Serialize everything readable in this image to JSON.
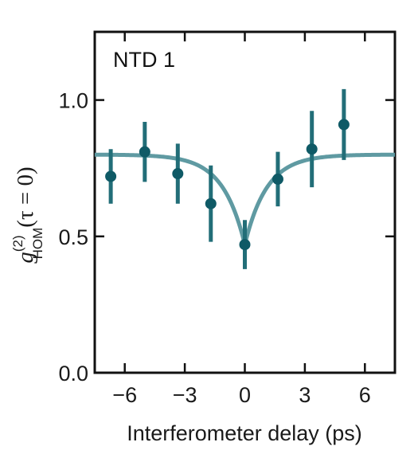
{
  "chart_data": {
    "type": "scatter",
    "panel_label": "NTD 1",
    "xlabel": "Interferometer delay (ps)",
    "ylabel": {
      "base": "g",
      "superscript": "(2)",
      "subscript": "HOM",
      "argument": "(τ = 0)"
    },
    "xlim": [
      -7.5,
      7.5
    ],
    "ylim": [
      0.0,
      1.25
    ],
    "xticks": [
      -6,
      -3,
      0,
      3,
      6
    ],
    "xtick_labels": [
      "−6",
      "−3",
      "0",
      "3",
      "6"
    ],
    "yticks": [
      0.0,
      0.5,
      1.0
    ],
    "ytick_labels": [
      "0.0",
      "0.5",
      "1.0"
    ],
    "grid": false,
    "series": [
      {
        "style": "markers-with-errorbars",
        "color": "#0f5a66",
        "x": [
          -6.7,
          -5.0,
          -3.35,
          -1.7,
          0.0,
          1.65,
          3.35,
          4.95
        ],
        "y": [
          0.72,
          0.81,
          0.73,
          0.62,
          0.47,
          0.71,
          0.82,
          0.91
        ],
        "yerr": [
          0.1,
          0.11,
          0.11,
          0.14,
          0.09,
          0.1,
          0.14,
          0.13
        ]
      },
      {
        "style": "fit-line",
        "color": "#5f9aa2",
        "baseline": 0.8,
        "dip_depth": 0.33,
        "dip_width_ps": 1.1
      }
    ]
  }
}
